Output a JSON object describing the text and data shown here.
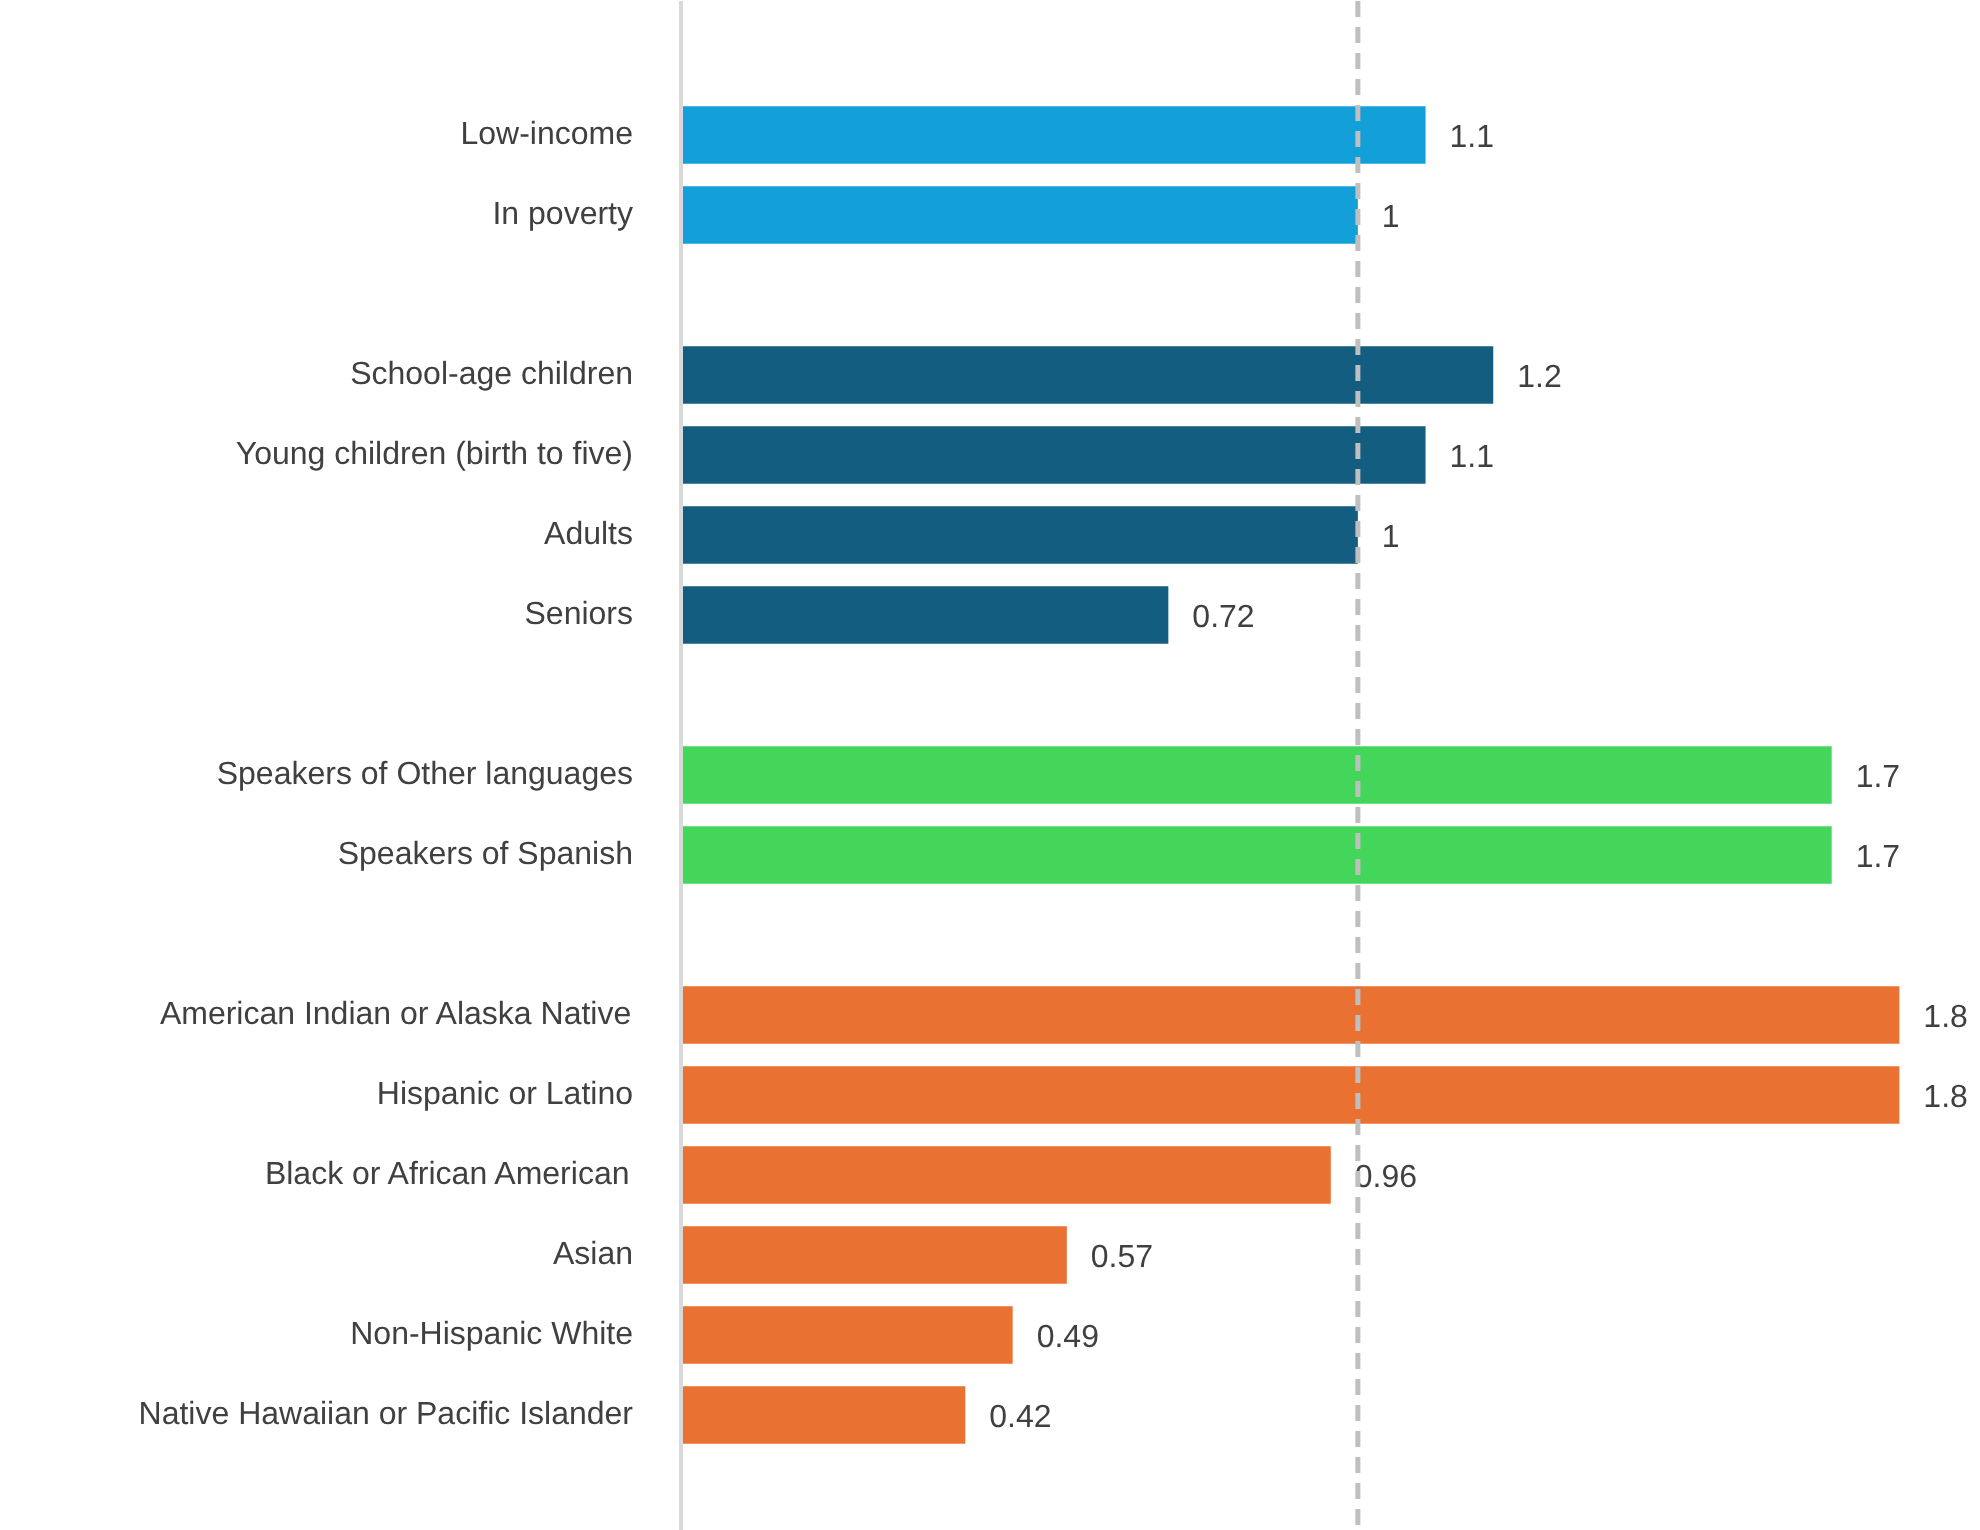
{
  "chart_data": {
    "type": "bar",
    "orientation": "horizontal",
    "categories": [
      "Low-income",
      "In poverty",
      null,
      "School-age children",
      "Young children (birth to five)",
      "Adults",
      "Seniors",
      null,
      "Speakers of Other languages",
      "Speakers of Spanish",
      null,
      "American Indian or Alaska Native",
      "Hispanic or Latino",
      "Black or African American",
      "Asian",
      "Non-Hispanic White",
      "Native Hawaiian or Pacific Islander"
    ],
    "values": [
      1.1,
      1,
      null,
      1.2,
      1.1,
      1,
      0.72,
      null,
      1.7,
      1.7,
      null,
      1.8,
      1.8,
      0.96,
      0.57,
      0.49,
      0.42
    ],
    "colors": [
      "#13a0d8",
      "#13a0d8",
      null,
      "#135e80",
      "#135e80",
      "#135e80",
      "#135e80",
      null,
      "#43d65a",
      "#43d65a",
      null,
      "#e97132",
      "#e97132",
      "#e97132",
      "#e97132",
      "#e97132",
      "#e97132"
    ],
    "data_labels": true,
    "tick_labels": "y",
    "grid": false,
    "ref_lines": [
      {
        "axis": "x",
        "value": 1,
        "color": "#bfbfbf",
        "line_style": "dashed"
      }
    ]
  }
}
